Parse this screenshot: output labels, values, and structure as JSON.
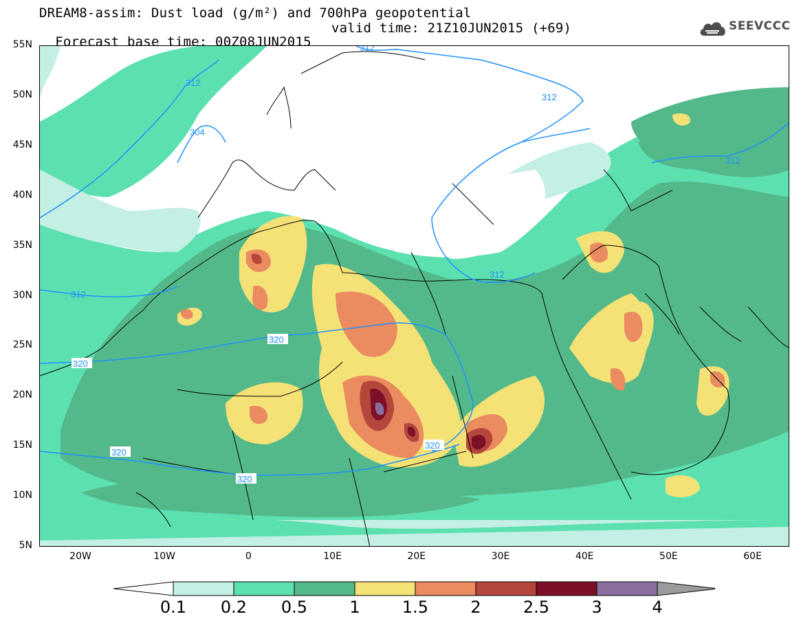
{
  "title": {
    "line1": "DREAM8-assim: Dust load (g/m²) and 700hPa geopotential",
    "line2": "Forecast base time: 00Z08JUN2015",
    "line2_valid": "valid time: 21Z10JUN2015 (+69)"
  },
  "logo": {
    "text": "SEEVCCC",
    "icon": "cloud-icon"
  },
  "axes": {
    "lat_labels": [
      "55N",
      "50N",
      "45N",
      "40N",
      "35N",
      "30N",
      "25N",
      "20N",
      "15N",
      "10N",
      "5N"
    ],
    "lon_labels": [
      "20W",
      "10W",
      "0",
      "10E",
      "20E",
      "30E",
      "40E",
      "50E",
      "60E"
    ]
  },
  "contour_labels": [
    "312",
    "312",
    "304",
    "312",
    "312",
    "312",
    "320",
    "320",
    "320",
    "320",
    "320"
  ],
  "legend": {
    "tick_labels": [
      "0.1",
      "0.2",
      "0.5",
      "1",
      "1.5",
      "2",
      "2.5",
      "3",
      "4"
    ],
    "colors": [
      "#c3efe4",
      "#5de0b0",
      "#54b98a",
      "#f5e277",
      "#eb8b60",
      "#b5463c",
      "#7d0f28",
      "#8b6ea0"
    ],
    "under_color": "#ffffff",
    "over_color": "#9b9b9b"
  },
  "colors": {
    "geopotential_contour": "#1e90ff",
    "coastline": "#000000"
  }
}
